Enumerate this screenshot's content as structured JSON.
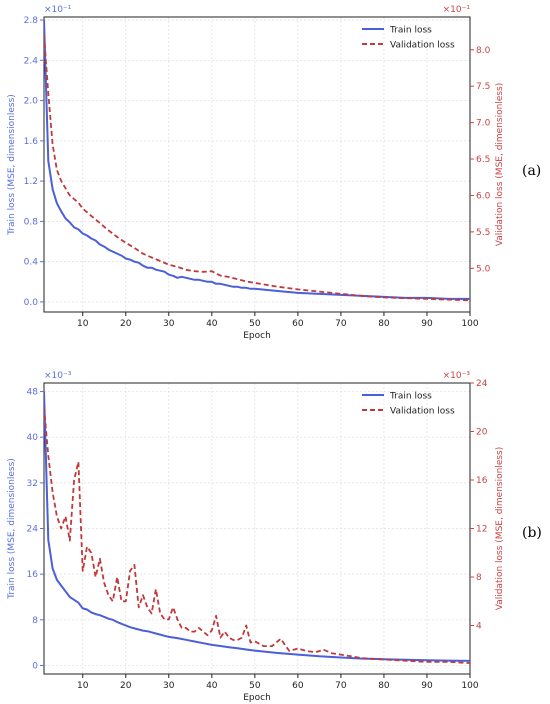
{
  "chart_data": [
    {
      "type": "line",
      "panel_label": "(a)",
      "xlabel": "Epoch",
      "ylabel_left": "Train loss (MSE, dimensionless)",
      "ylabel_right": "Validation loss (MSE, dimensionless)",
      "left_multiplier": "×10⁻¹",
      "right_multiplier": "×10⁻¹",
      "xlim": [
        1,
        100
      ],
      "ylim_left": [
        -0.1,
        2.83
      ],
      "ylim_right": [
        4.4,
        8.45
      ],
      "xticks": [
        "10",
        "20",
        "30",
        "40",
        "50",
        "60",
        "70",
        "80",
        "90",
        "100"
      ],
      "yticks_left": [
        "0.0",
        "0.4",
        "0.8",
        "1.2",
        "1.6",
        "2.0",
        "2.4",
        "2.8"
      ],
      "yticks_right": [
        "5.0",
        "5.5",
        "6.0",
        "6.5",
        "7.0",
        "7.5",
        "8.0"
      ],
      "grid": true,
      "legend_position": "top-right",
      "colors": {
        "train": "#4a5fd9",
        "validation": "#c0393b",
        "left_axis": "#5b6fe0",
        "right_axis": "#cc4444"
      },
      "series": [
        {
          "name": "Train loss",
          "axis": "left",
          "x": [
            1,
            2,
            3,
            4,
            5,
            6,
            7,
            8,
            9,
            10,
            11,
            12,
            13,
            14,
            15,
            16,
            17,
            18,
            19,
            20,
            21,
            22,
            23,
            24,
            25,
            26,
            27,
            28,
            29,
            30,
            31,
            32,
            33,
            34,
            35,
            36,
            37,
            38,
            39,
            40,
            41,
            42,
            43,
            44,
            45,
            46,
            47,
            48,
            49,
            50,
            55,
            60,
            65,
            70,
            75,
            80,
            85,
            90,
            95,
            100
          ],
          "y": [
            2.8,
            1.4,
            1.12,
            0.98,
            0.9,
            0.83,
            0.79,
            0.74,
            0.72,
            0.68,
            0.66,
            0.63,
            0.61,
            0.57,
            0.55,
            0.52,
            0.5,
            0.48,
            0.46,
            0.43,
            0.42,
            0.4,
            0.39,
            0.36,
            0.34,
            0.34,
            0.32,
            0.31,
            0.3,
            0.27,
            0.26,
            0.24,
            0.25,
            0.24,
            0.23,
            0.22,
            0.22,
            0.21,
            0.2,
            0.2,
            0.18,
            0.18,
            0.17,
            0.16,
            0.15,
            0.15,
            0.14,
            0.14,
            0.13,
            0.13,
            0.11,
            0.09,
            0.08,
            0.07,
            0.06,
            0.05,
            0.04,
            0.04,
            0.03,
            0.03
          ]
        },
        {
          "name": "Validation loss",
          "axis": "right",
          "x": [
            1,
            2,
            3,
            4,
            5,
            6,
            7,
            8,
            9,
            10,
            12,
            14,
            16,
            18,
            20,
            22,
            24,
            26,
            28,
            30,
            32,
            34,
            36,
            38,
            40,
            42,
            44,
            46,
            48,
            50,
            55,
            60,
            65,
            70,
            75,
            80,
            85,
            90,
            95,
            100
          ],
          "y": [
            8.2,
            7.4,
            6.7,
            6.35,
            6.2,
            6.1,
            6.0,
            5.95,
            5.9,
            5.82,
            5.72,
            5.62,
            5.52,
            5.43,
            5.35,
            5.28,
            5.2,
            5.15,
            5.1,
            5.05,
            5.02,
            4.98,
            4.96,
            4.95,
            4.96,
            4.9,
            4.88,
            4.85,
            4.82,
            4.8,
            4.75,
            4.71,
            4.68,
            4.65,
            4.62,
            4.6,
            4.59,
            4.58,
            4.57,
            4.56
          ]
        }
      ]
    },
    {
      "type": "line",
      "panel_label": "(b)",
      "xlabel": "Epoch",
      "ylabel_left": "Train loss (MSE, dimensionless)",
      "ylabel_right": "Validation loss (MSE, dimensionless)",
      "left_multiplier": "×10⁻³",
      "right_multiplier": "×10⁻³",
      "xlim": [
        1,
        100
      ],
      "ylim_left": [
        -1.5,
        49.5
      ],
      "ylim_right": [
        0,
        24
      ],
      "xticks": [
        "10",
        "20",
        "30",
        "40",
        "50",
        "60",
        "70",
        "80",
        "90",
        "100"
      ],
      "yticks_left": [
        "0",
        "8",
        "16",
        "24",
        "32",
        "40",
        "48"
      ],
      "yticks_right": [
        "4",
        "8",
        "12",
        "16",
        "20",
        "24"
      ],
      "grid": true,
      "legend_position": "top-right",
      "colors": {
        "train": "#4a5fd9",
        "validation": "#c0393b",
        "left_axis": "#5b6fe0",
        "right_axis": "#cc4444"
      },
      "series": [
        {
          "name": "Train loss",
          "axis": "left",
          "x": [
            1,
            2,
            3,
            4,
            5,
            6,
            7,
            8,
            9,
            10,
            11,
            12,
            13,
            14,
            15,
            16,
            17,
            18,
            19,
            20,
            21,
            22,
            23,
            24,
            25,
            26,
            27,
            28,
            29,
            30,
            32,
            34,
            36,
            38,
            40,
            42,
            44,
            46,
            48,
            50,
            55,
            60,
            65,
            70,
            75,
            80,
            85,
            90,
            95,
            100
          ],
          "y": [
            48,
            22,
            17,
            15,
            14,
            13,
            12,
            11.5,
            11,
            10,
            9.8,
            9.3,
            9,
            8.8,
            8.5,
            8.2,
            8,
            7.6,
            7.3,
            7,
            6.7,
            6.5,
            6.3,
            6.1,
            6,
            5.8,
            5.6,
            5.4,
            5.2,
            5,
            4.8,
            4.5,
            4.2,
            3.9,
            3.6,
            3.4,
            3.2,
            3,
            2.8,
            2.6,
            2.2,
            1.9,
            1.6,
            1.4,
            1.2,
            1.1,
            1,
            0.9,
            0.85,
            0.8
          ]
        },
        {
          "name": "Validation loss",
          "axis": "right",
          "x": [
            1,
            2,
            3,
            4,
            5,
            6,
            7,
            8,
            9,
            10,
            11,
            12,
            13,
            14,
            15,
            16,
            17,
            18,
            19,
            20,
            21,
            22,
            23,
            24,
            25,
            26,
            27,
            28,
            29,
            30,
            31,
            32,
            33,
            34,
            35,
            36,
            37,
            38,
            39,
            40,
            41,
            42,
            43,
            44,
            45,
            46,
            47,
            48,
            49,
            50,
            52,
            54,
            56,
            58,
            60,
            62,
            64,
            66,
            68,
            70,
            75,
            80,
            85,
            90,
            95,
            100
          ],
          "y": [
            22,
            18,
            15,
            13,
            12,
            13,
            11,
            16,
            17.5,
            8.5,
            10.5,
            10,
            8,
            9.5,
            7.5,
            6.5,
            6,
            8,
            6,
            6,
            8.5,
            9,
            5.5,
            6.5,
            5.5,
            5,
            7,
            5,
            4.5,
            4.5,
            5.5,
            4.5,
            3.8,
            3.8,
            3.5,
            3.5,
            3.8,
            3.5,
            3.2,
            3.6,
            4.8,
            3.0,
            3.5,
            3.0,
            2.8,
            2.8,
            3.0,
            4.0,
            2.6,
            2.7,
            2.3,
            2.3,
            2.9,
            1.9,
            2.1,
            1.9,
            1.8,
            2.0,
            1.7,
            1.6,
            1.3,
            1.2,
            1.1,
            1.0,
            1.0,
            0.9
          ]
        }
      ]
    }
  ]
}
